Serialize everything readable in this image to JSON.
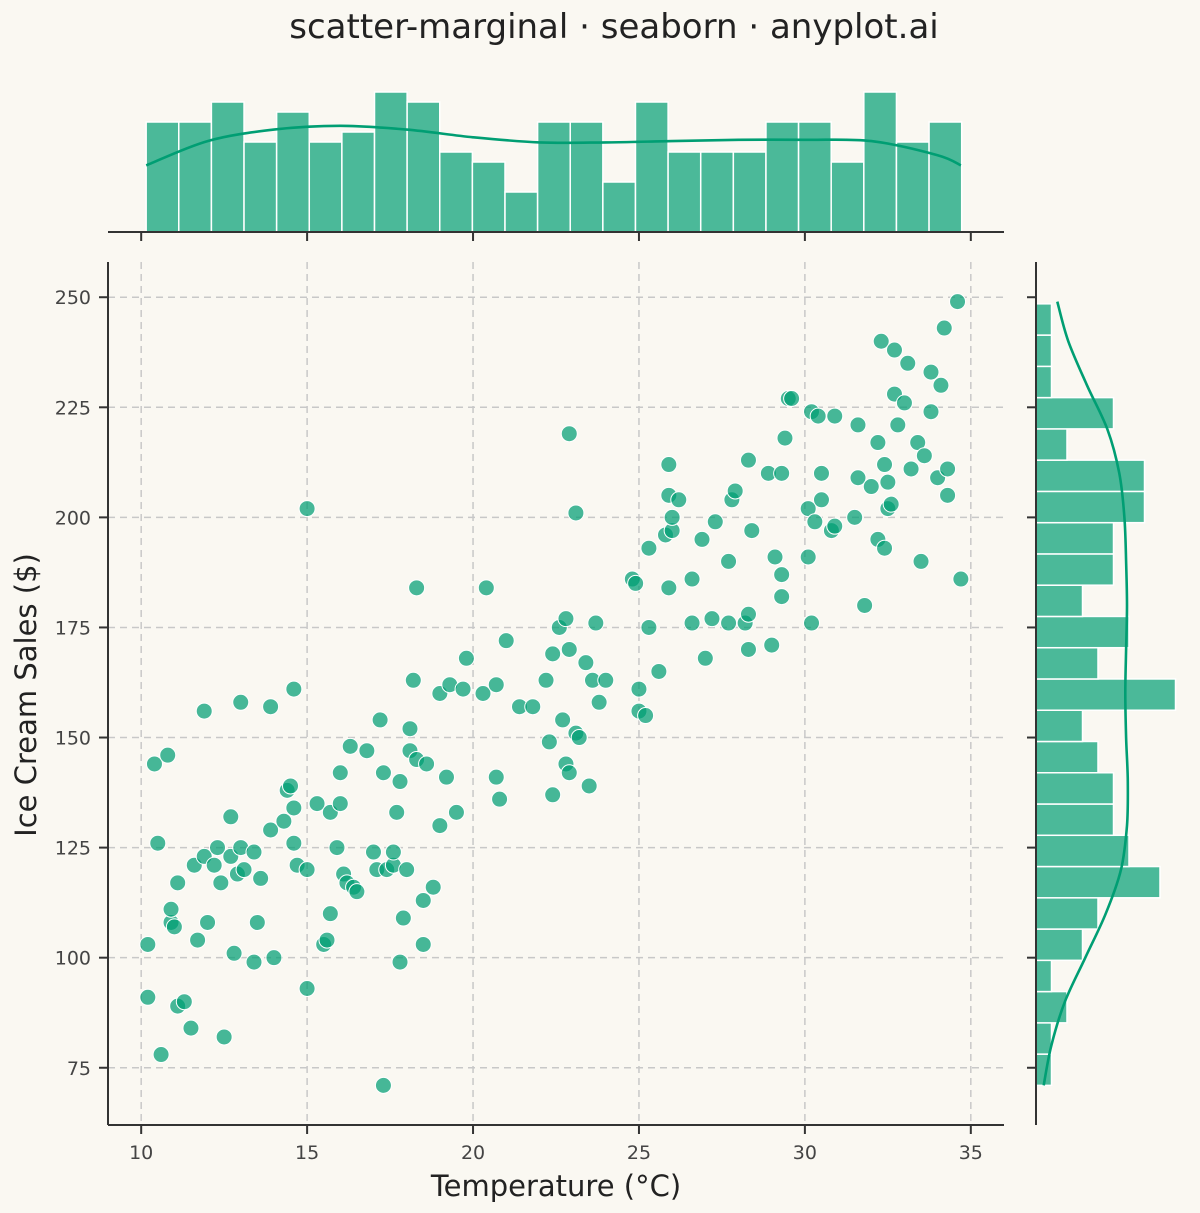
{
  "chart_data": {
    "type": "scatter",
    "title": "scatter-marginal · seaborn · anyplot.ai",
    "xlabel": "Temperature (°C)",
    "ylabel": "Ice Cream Sales ($)",
    "xlim": [
      9,
      36
    ],
    "ylim": [
      62,
      258
    ],
    "xticks": [
      10,
      15,
      20,
      25,
      30,
      35
    ],
    "yticks": [
      75,
      100,
      125,
      150,
      175,
      200,
      225,
      250
    ],
    "grid": true,
    "colors": {
      "accent": "#009e73",
      "background": "#faf8f2"
    },
    "series": [
      {
        "points": [
          [
            10.2,
            91
          ],
          [
            10.2,
            103
          ],
          [
            10.4,
            144
          ],
          [
            10.5,
            126
          ],
          [
            10.6,
            78
          ],
          [
            10.8,
            146
          ],
          [
            10.9,
            108
          ],
          [
            10.9,
            111
          ],
          [
            11.0,
            107
          ],
          [
            11.1,
            117
          ],
          [
            11.1,
            89
          ],
          [
            11.3,
            90
          ],
          [
            11.5,
            84
          ],
          [
            11.6,
            121
          ],
          [
            11.7,
            104
          ],
          [
            11.9,
            123
          ],
          [
            11.9,
            156
          ],
          [
            12.0,
            108
          ],
          [
            12.2,
            121
          ],
          [
            12.3,
            125
          ],
          [
            12.4,
            117
          ],
          [
            12.5,
            82
          ],
          [
            12.7,
            132
          ],
          [
            12.7,
            123
          ],
          [
            12.8,
            101
          ],
          [
            12.9,
            119
          ],
          [
            13.0,
            125
          ],
          [
            13.0,
            158
          ],
          [
            13.1,
            120
          ],
          [
            13.4,
            99
          ],
          [
            13.4,
            124
          ],
          [
            13.5,
            108
          ],
          [
            13.6,
            118
          ],
          [
            13.9,
            157
          ],
          [
            13.9,
            129
          ],
          [
            14.0,
            100
          ],
          [
            14.3,
            131
          ],
          [
            14.4,
            138
          ],
          [
            14.5,
            139
          ],
          [
            14.6,
            161
          ],
          [
            14.6,
            134
          ],
          [
            14.6,
            126
          ],
          [
            14.7,
            121
          ],
          [
            15.0,
            202
          ],
          [
            15.0,
            93
          ],
          [
            15.0,
            120
          ],
          [
            15.3,
            135
          ],
          [
            15.5,
            103
          ],
          [
            15.7,
            110
          ],
          [
            15.6,
            104
          ],
          [
            15.7,
            133
          ],
          [
            15.9,
            125
          ],
          [
            16.0,
            142
          ],
          [
            16.0,
            135
          ],
          [
            16.1,
            119
          ],
          [
            16.2,
            117
          ],
          [
            16.3,
            148
          ],
          [
            16.4,
            116
          ],
          [
            16.5,
            115
          ],
          [
            16.8,
            147
          ],
          [
            17.0,
            124
          ],
          [
            17.1,
            120
          ],
          [
            17.2,
            154
          ],
          [
            17.3,
            71
          ],
          [
            17.3,
            142
          ],
          [
            17.4,
            120
          ],
          [
            17.6,
            121
          ],
          [
            17.6,
            124
          ],
          [
            17.7,
            133
          ],
          [
            17.8,
            99
          ],
          [
            17.8,
            140
          ],
          [
            17.9,
            109
          ],
          [
            18.0,
            120
          ],
          [
            18.1,
            147
          ],
          [
            18.1,
            152
          ],
          [
            18.2,
            163
          ],
          [
            18.3,
            145
          ],
          [
            18.3,
            184
          ],
          [
            18.5,
            113
          ],
          [
            18.5,
            103
          ],
          [
            18.6,
            144
          ],
          [
            18.8,
            116
          ],
          [
            19.0,
            160
          ],
          [
            19.0,
            130
          ],
          [
            19.2,
            141
          ],
          [
            19.3,
            162
          ],
          [
            19.5,
            133
          ],
          [
            19.7,
            161
          ],
          [
            19.8,
            168
          ],
          [
            20.3,
            160
          ],
          [
            20.4,
            184
          ],
          [
            20.7,
            162
          ],
          [
            20.7,
            141
          ],
          [
            20.8,
            136
          ],
          [
            21.0,
            172
          ],
          [
            21.4,
            157
          ],
          [
            21.8,
            157
          ],
          [
            22.2,
            163
          ],
          [
            22.3,
            149
          ],
          [
            22.4,
            137
          ],
          [
            22.4,
            169
          ],
          [
            22.6,
            175
          ],
          [
            22.7,
            154
          ],
          [
            22.8,
            144
          ],
          [
            22.8,
            177
          ],
          [
            22.9,
            219
          ],
          [
            22.9,
            142
          ],
          [
            22.9,
            170
          ],
          [
            23.1,
            201
          ],
          [
            23.1,
            151
          ],
          [
            23.2,
            150
          ],
          [
            23.4,
            167
          ],
          [
            23.5,
            139
          ],
          [
            23.6,
            163
          ],
          [
            23.7,
            176
          ],
          [
            23.8,
            158
          ],
          [
            24.0,
            163
          ],
          [
            24.8,
            186
          ],
          [
            24.9,
            185
          ],
          [
            25.0,
            161
          ],
          [
            25.0,
            156
          ],
          [
            25.2,
            155
          ],
          [
            25.3,
            193
          ],
          [
            25.3,
            175
          ],
          [
            25.6,
            165
          ],
          [
            25.8,
            196
          ],
          [
            25.9,
            212
          ],
          [
            25.9,
            205
          ],
          [
            25.9,
            184
          ],
          [
            26.0,
            197
          ],
          [
            26.0,
            200
          ],
          [
            26.2,
            204
          ],
          [
            26.6,
            176
          ],
          [
            26.6,
            186
          ],
          [
            26.9,
            195
          ],
          [
            27.0,
            168
          ],
          [
            27.2,
            177
          ],
          [
            27.3,
            199
          ],
          [
            27.7,
            176
          ],
          [
            27.7,
            190
          ],
          [
            27.8,
            204
          ],
          [
            27.9,
            206
          ],
          [
            28.2,
            176
          ],
          [
            28.3,
            178
          ],
          [
            28.3,
            170
          ],
          [
            28.3,
            213
          ],
          [
            28.4,
            197
          ],
          [
            28.9,
            210
          ],
          [
            29.0,
            171
          ],
          [
            29.1,
            191
          ],
          [
            29.3,
            187
          ],
          [
            29.3,
            182
          ],
          [
            29.3,
            210
          ],
          [
            29.4,
            218
          ],
          [
            29.5,
            227
          ],
          [
            29.6,
            227
          ],
          [
            30.1,
            202
          ],
          [
            30.1,
            191
          ],
          [
            30.2,
            224
          ],
          [
            30.2,
            176
          ],
          [
            30.3,
            199
          ],
          [
            30.4,
            223
          ],
          [
            30.5,
            210
          ],
          [
            30.5,
            204
          ],
          [
            30.8,
            197
          ],
          [
            30.9,
            223
          ],
          [
            30.9,
            198
          ],
          [
            31.5,
            200
          ],
          [
            31.6,
            209
          ],
          [
            31.6,
            221
          ],
          [
            31.8,
            180
          ],
          [
            32.0,
            207
          ],
          [
            32.2,
            195
          ],
          [
            32.2,
            217
          ],
          [
            32.3,
            240
          ],
          [
            32.4,
            193
          ],
          [
            32.4,
            212
          ],
          [
            32.5,
            202
          ],
          [
            32.5,
            208
          ],
          [
            32.6,
            203
          ],
          [
            32.7,
            228
          ],
          [
            32.7,
            238
          ],
          [
            32.8,
            221
          ],
          [
            33.0,
            226
          ],
          [
            33.1,
            235
          ],
          [
            33.2,
            211
          ],
          [
            33.4,
            217
          ],
          [
            33.5,
            190
          ],
          [
            33.6,
            214
          ],
          [
            33.8,
            224
          ],
          [
            33.8,
            233
          ],
          [
            34.0,
            209
          ],
          [
            34.1,
            230
          ],
          [
            34.2,
            243
          ],
          [
            34.3,
            211
          ],
          [
            34.3,
            205
          ],
          [
            34.6,
            249
          ],
          [
            34.7,
            186
          ]
        ]
      }
    ],
    "marginal_x": {
      "type": "histogram",
      "bin_edges": [
        10.15,
        11.133,
        12.116,
        13.099,
        14.082,
        15.065,
        16.048,
        17.031,
        18.014,
        18.997,
        19.98,
        20.963,
        21.946,
        22.929,
        23.912,
        24.895,
        25.878,
        26.861,
        27.844,
        28.827,
        29.81,
        30.793,
        31.776,
        32.759,
        33.742,
        34.725
      ],
      "counts": [
        11,
        11,
        13,
        9,
        12,
        9,
        10,
        14,
        13,
        8,
        7,
        4,
        11,
        11,
        5,
        13,
        8,
        8,
        8,
        11,
        11,
        7,
        14,
        9,
        11
      ],
      "kde": {
        "x": [
          10.15,
          12,
          14,
          16,
          18,
          20,
          22,
          24,
          26,
          28,
          30,
          32,
          34,
          34.7
        ],
        "density": [
          0.52,
          0.71,
          0.8,
          0.83,
          0.8,
          0.74,
          0.7,
          0.7,
          0.71,
          0.72,
          0.72,
          0.71,
          0.6,
          0.52
        ]
      }
    },
    "marginal_y": {
      "type": "histogram",
      "bin_edges": [
        71.0,
        78.1,
        85.2,
        92.3,
        99.4,
        106.5,
        113.6,
        120.7,
        127.8,
        134.9,
        142.0,
        149.1,
        156.2,
        163.3,
        170.4,
        177.5,
        184.6,
        191.7,
        198.8,
        205.9,
        213.0,
        220.1,
        227.2,
        234.3,
        241.4,
        248.5
      ],
      "counts": [
        1,
        1,
        2,
        1,
        3,
        4,
        8,
        6,
        5,
        5,
        4,
        3,
        9,
        4,
        6,
        3,
        5,
        5,
        7,
        7,
        2,
        5,
        1,
        1,
        1
      ],
      "kde": {
        "y": [
          71,
          80,
          90,
          100,
          110,
          120,
          130,
          140,
          150,
          160,
          170,
          180,
          190,
          200,
          210,
          220,
          230,
          240,
          249
        ],
        "density": [
          0.45,
          0.9,
          1.7,
          2.9,
          4.1,
          5.0,
          5.35,
          5.4,
          5.3,
          5.25,
          5.3,
          5.35,
          5.3,
          5.2,
          4.9,
          4.2,
          3.0,
          1.9,
          1.25
        ]
      }
    }
  }
}
